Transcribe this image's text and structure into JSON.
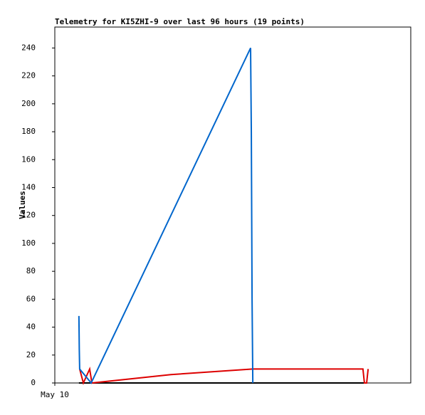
{
  "chart_data": {
    "type": "line",
    "title": "Telemetry for KI5ZHI-9 over last 96 hours (19 points)",
    "y_label": "Values",
    "xlim": [
      0,
      96
    ],
    "xticks": [
      {
        "value": 0,
        "label": "May 10"
      }
    ],
    "ylim": [
      0,
      255
    ],
    "yticks": [
      0,
      20,
      40,
      60,
      80,
      100,
      120,
      140,
      160,
      180,
      200,
      220,
      240
    ],
    "grid": false,
    "series": [
      {
        "color": "#0066cc",
        "x": [
          6.5,
          6.6,
          6.7,
          9.8,
          52.8,
          53.0,
          53.2,
          53.4
        ],
        "values": [
          48,
          24,
          10,
          0,
          240,
          180,
          60,
          0
        ]
      },
      {
        "color": "#dd0000",
        "x": [
          6.7,
          7.7,
          9.4,
          10.0,
          31.3,
          53.4,
          83.1,
          83.5,
          84.1,
          84.5
        ],
        "values": [
          10,
          0,
          10,
          0,
          6,
          10,
          10,
          0,
          0,
          10
        ]
      },
      {
        "color": "#000000",
        "x": [
          6.5,
          84.1
        ],
        "values": [
          0,
          0
        ]
      }
    ]
  }
}
